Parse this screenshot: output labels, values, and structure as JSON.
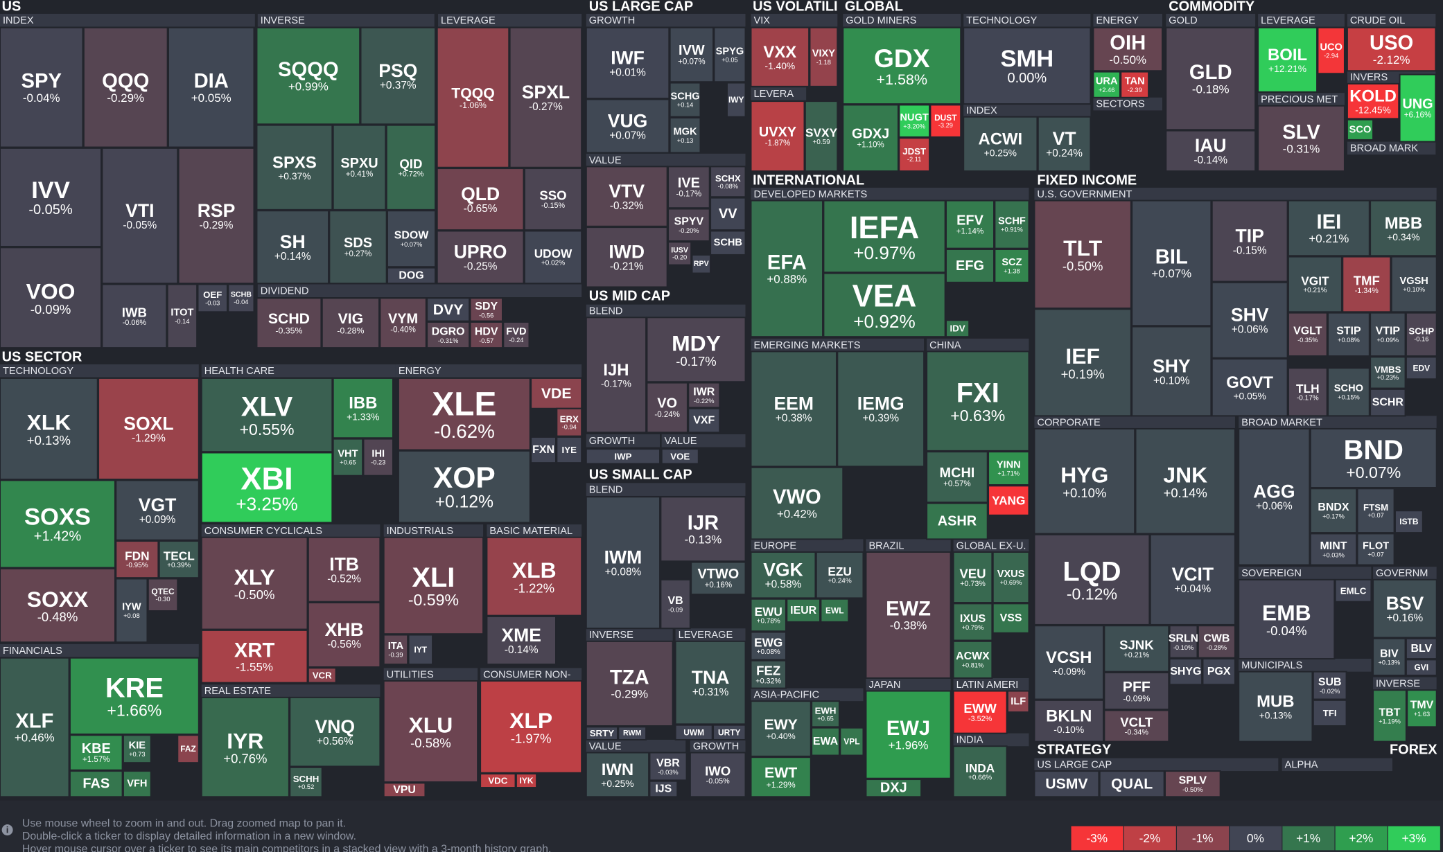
{
  "sections": [
    "US",
    "US LARGE CAP",
    "US VOLATILI",
    "GLOBAL",
    "COMMODITY",
    "US SECTOR",
    "INTERNATIONAL",
    "FIXED INCOME",
    "US MID CAP",
    "US SMALL CAP",
    "STRATEGY",
    "FOREX"
  ],
  "groups": [
    "INDEX",
    "INVERSE",
    "LEVERAGE",
    "DIVIDEND",
    "GROWTH",
    "VALUE",
    "VIX",
    "LEVERA",
    "GOLD MINERS",
    "TECHNOLOGY",
    "ENERGY",
    "INDEX",
    "SECTORS",
    "GOLD",
    "LEVERAGE",
    "CRUDE OIL",
    "PRECIOUS MET",
    "INVERS",
    "BROAD MARK",
    "TECHNOLOGY",
    "HEALTH CARE",
    "ENERGY",
    "CONSUMER CYCLICALS",
    "INDUSTRIALS",
    "BASIC MATERIAL",
    "FINANCIALS",
    "REAL ESTATE",
    "UTILITIES",
    "CONSUMER NON-",
    "BLEND",
    "GROWTH",
    "VALUE",
    "BLEND",
    "INVERSE",
    "LEVERAGE",
    "VALUE",
    "GROWTH",
    "DEVELOPED MARKETS",
    "EMERGING MARKETS",
    "CHINA",
    "EUROPE",
    "BRAZIL",
    "GLOBAL EX-U.",
    "ASIA-PACIFIC",
    "JAPAN",
    "LATIN AMERI",
    "INDIA",
    "U.S. GOVERNMENT",
    "CORPORATE",
    "BROAD MARKET",
    "SOVEREIGN",
    "GOVERNM",
    "MUNICIPALS",
    "INVERSE",
    "US LARGE CAP",
    "ALPHA"
  ],
  "tiles": [
    {
      "ticker": "SPY",
      "change": "-0.04%"
    },
    {
      "ticker": "QQQ",
      "change": "-0.29%"
    },
    {
      "ticker": "DIA",
      "change": "+0.05%"
    },
    {
      "ticker": "IVV",
      "change": "-0.05%"
    },
    {
      "ticker": "VTI",
      "change": "-0.05%"
    },
    {
      "ticker": "RSP",
      "change": "-0.29%"
    },
    {
      "ticker": "VOO",
      "change": "-0.09%"
    },
    {
      "ticker": "IWB",
      "change": "-0.06%"
    },
    {
      "ticker": "ITOT",
      "change": "-0.14"
    },
    {
      "ticker": "OEF",
      "change": "-0.03"
    },
    {
      "ticker": "SCHB",
      "change": "-0.04"
    },
    {
      "ticker": "SQQQ",
      "change": "+0.99%"
    },
    {
      "ticker": "PSQ",
      "change": "+0.37%"
    },
    {
      "ticker": "SPXS",
      "change": "+0.37%"
    },
    {
      "ticker": "SPXU",
      "change": "+0.41%"
    },
    {
      "ticker": "QID",
      "change": "+0.72%"
    },
    {
      "ticker": "SH",
      "change": "+0.14%"
    },
    {
      "ticker": "SDS",
      "change": "+0.27%"
    },
    {
      "ticker": "SDOW",
      "change": "+0.07%"
    },
    {
      "ticker": "DOG"
    },
    {
      "ticker": "TQQQ",
      "change": "-1.06%"
    },
    {
      "ticker": "SPXL",
      "change": "-0.27%"
    },
    {
      "ticker": "QLD",
      "change": "-0.65%"
    },
    {
      "ticker": "SSO",
      "change": "-0.15%"
    },
    {
      "ticker": "UPRO",
      "change": "-0.25%"
    },
    {
      "ticker": "UDOW",
      "change": "+0.02%"
    },
    {
      "ticker": "SCHD",
      "change": "-0.35%"
    },
    {
      "ticker": "VIG",
      "change": "-0.28%"
    },
    {
      "ticker": "VYM",
      "change": "-0.40%"
    },
    {
      "ticker": "DVY"
    },
    {
      "ticker": "SDY",
      "change": "-0.56"
    },
    {
      "ticker": "DGRO",
      "change": "-0.31%"
    },
    {
      "ticker": "HDV",
      "change": "-0.57"
    },
    {
      "ticker": "FVD",
      "change": "-0.24"
    },
    {
      "ticker": "XLK",
      "change": "+0.13%"
    },
    {
      "ticker": "SOXL",
      "change": "-1.29%"
    },
    {
      "ticker": "SOXS",
      "change": "+1.42%"
    },
    {
      "ticker": "VGT",
      "change": "+0.09%"
    },
    {
      "ticker": "FDN",
      "change": "-0.95%"
    },
    {
      "ticker": "TECL",
      "change": "+0.39%"
    },
    {
      "ticker": "SOXX",
      "change": "-0.48%"
    },
    {
      "ticker": "IYW",
      "change": "+0.08"
    },
    {
      "ticker": "QTEC",
      "change": "-0.30"
    },
    {
      "ticker": "XLF",
      "change": "+0.46%"
    },
    {
      "ticker": "KRE",
      "change": "+1.66%"
    },
    {
      "ticker": "KBE",
      "change": "+1.57%"
    },
    {
      "ticker": "KIE",
      "change": "+0.73"
    },
    {
      "ticker": "FAZ",
      "color": "#8b444e"
    },
    {
      "ticker": "FAS",
      "color": "#35764e"
    },
    {
      "ticker": "VFH",
      "color": "#35764e"
    },
    {
      "ticker": "XLV",
      "change": "+0.55%"
    },
    {
      "ticker": "IBB",
      "change": "+1.33%"
    },
    {
      "ticker": "XBI",
      "change": "+3.25%"
    },
    {
      "ticker": "VHT",
      "change": "+0.65"
    },
    {
      "ticker": "IHI",
      "change": "-0.23"
    },
    {
      "ticker": "XLE",
      "change": "-0.62%"
    },
    {
      "ticker": "VDE",
      "color": "#8b444e"
    },
    {
      "ticker": "ERX",
      "change": "-0.94"
    },
    {
      "ticker": "FXN"
    },
    {
      "ticker": "IYE"
    },
    {
      "ticker": "XOP",
      "change": "+0.12%"
    },
    {
      "ticker": "XLY",
      "change": "-0.50%"
    },
    {
      "ticker": "ITB",
      "change": "-0.52%"
    },
    {
      "ticker": "XRT",
      "change": "-1.55%"
    },
    {
      "ticker": "XHB",
      "change": "-0.56%"
    },
    {
      "ticker": "VCR",
      "color": "#8b444e"
    },
    {
      "ticker": "XLI",
      "change": "-0.59%"
    },
    {
      "ticker": "ITA",
      "change": "-0.39"
    },
    {
      "ticker": "IYT"
    },
    {
      "ticker": "XLB",
      "change": "-1.22%"
    },
    {
      "ticker": "XME",
      "change": "-0.14%"
    },
    {
      "ticker": "IYR",
      "change": "+0.76%"
    },
    {
      "ticker": "VNQ",
      "change": "+0.56%"
    },
    {
      "ticker": "SCHH",
      "change": "+0.52"
    },
    {
      "ticker": "XLU",
      "change": "-0.58%"
    },
    {
      "ticker": "VPU",
      "color": "#8b444e"
    },
    {
      "ticker": "XLP",
      "change": "-1.97%"
    },
    {
      "ticker": "VDC",
      "color": "#bf4045"
    },
    {
      "ticker": "IYK",
      "color": "#bf4045"
    },
    {
      "ticker": "IWF",
      "change": "+0.01%"
    },
    {
      "ticker": "IVW",
      "change": "+0.07%"
    },
    {
      "ticker": "SPYG",
      "change": "+0.05"
    },
    {
      "ticker": "VUG",
      "change": "+0.07%"
    },
    {
      "ticker": "SCHG",
      "change": "+0.14"
    },
    {
      "ticker": "IWY"
    },
    {
      "ticker": "MGK",
      "change": "+0.13"
    },
    {
      "ticker": "VTV",
      "change": "-0.32%"
    },
    {
      "ticker": "IVE",
      "change": "-0.17%"
    },
    {
      "ticker": "SCHX",
      "change": "-0.08%"
    },
    {
      "ticker": "VV"
    },
    {
      "ticker": "SPYV",
      "change": "-0.20%"
    },
    {
      "ticker": "SCHB"
    },
    {
      "ticker": "IWD",
      "change": "-0.21%"
    },
    {
      "ticker": "IUSV",
      "change": "-0.20"
    },
    {
      "ticker": "RPV"
    },
    {
      "ticker": "IJH",
      "change": "-0.17%"
    },
    {
      "ticker": "MDY",
      "change": "-0.17%"
    },
    {
      "ticker": "VO",
      "change": "-0.24%"
    },
    {
      "ticker": "IWR",
      "change": "-0.22%"
    },
    {
      "ticker": "VXF"
    },
    {
      "ticker": "IWP"
    },
    {
      "ticker": "VOE"
    },
    {
      "ticker": "IWM",
      "change": "+0.08%"
    },
    {
      "ticker": "IJR",
      "change": "-0.13%"
    },
    {
      "ticker": "VTWO",
      "change": "+0.16%"
    },
    {
      "ticker": "VB",
      "change": "-0.09"
    },
    {
      "ticker": "TZA",
      "change": "-0.29%"
    },
    {
      "ticker": "SRTY"
    },
    {
      "ticker": "RWM"
    },
    {
      "ticker": "TNA",
      "change": "+0.31%"
    },
    {
      "ticker": "UWM"
    },
    {
      "ticker": "URTY"
    },
    {
      "ticker": "IWN",
      "change": "+0.25%"
    },
    {
      "ticker": "VBR",
      "change": "-0.03%"
    },
    {
      "ticker": "IJS"
    },
    {
      "ticker": "IWO",
      "change": "-0.05%"
    },
    {
      "ticker": "VXX",
      "change": "-1.40%"
    },
    {
      "ticker": "VIXY",
      "change": "-1.18"
    },
    {
      "ticker": "UVXY",
      "change": "-1.87%"
    },
    {
      "ticker": "SVXY",
      "change": "+0.59"
    },
    {
      "ticker": "GDX",
      "change": "+1.58%"
    },
    {
      "ticker": "GDXJ",
      "change": "+1.10%"
    },
    {
      "ticker": "NUGT",
      "change": "+3.20%"
    },
    {
      "ticker": "DUST",
      "change": "-3.29"
    },
    {
      "ticker": "JDST",
      "change": "-2.11"
    },
    {
      "ticker": "SMH",
      "change": "0.00%"
    },
    {
      "ticker": "ACWI",
      "change": "+0.25%"
    },
    {
      "ticker": "VT",
      "change": "+0.24%"
    },
    {
      "ticker": "OIH",
      "change": "-0.50%"
    },
    {
      "ticker": "URA",
      "change": "+2.46"
    },
    {
      "ticker": "TAN",
      "change": "-2.39"
    },
    {
      "ticker": "GLD",
      "change": "-0.18%"
    },
    {
      "ticker": "IAU",
      "change": "-0.14%"
    },
    {
      "ticker": "BOIL",
      "change": "+12.21%"
    },
    {
      "ticker": "UCO",
      "change": "-2.94"
    },
    {
      "ticker": "USO",
      "change": "-2.12%"
    },
    {
      "ticker": "SLV",
      "change": "-0.31%"
    },
    {
      "ticker": "KOLD",
      "change": "-12.45%"
    },
    {
      "ticker": "UNG",
      "change": "+6.16%"
    },
    {
      "ticker": "SCO",
      "color": "#2f9e4f"
    },
    {
      "ticker": "EFA",
      "change": "+0.88%"
    },
    {
      "ticker": "IEFA",
      "change": "+0.97%"
    },
    {
      "ticker": "VEA",
      "change": "+0.92%"
    },
    {
      "ticker": "EFV",
      "change": "+1.14%"
    },
    {
      "ticker": "SCHF",
      "change": "+0.91%"
    },
    {
      "ticker": "EFG",
      "color": "#35764e"
    },
    {
      "ticker": "SCZ",
      "change": "+1.38"
    },
    {
      "ticker": "IDV",
      "color": "#35764e"
    },
    {
      "ticker": "EEM",
      "change": "+0.38%"
    },
    {
      "ticker": "IEMG",
      "change": "+0.39%"
    },
    {
      "ticker": "VWO",
      "change": "+0.42%"
    },
    {
      "ticker": "FXI",
      "change": "+0.63%"
    },
    {
      "ticker": "MCHI",
      "change": "+0.57%"
    },
    {
      "ticker": "YINN",
      "change": "+1.71%"
    },
    {
      "ticker": "YANG",
      "color": "#f63538"
    },
    {
      "ticker": "ASHR",
      "color": "#35764e"
    },
    {
      "ticker": "VGK",
      "change": "+0.58%"
    },
    {
      "ticker": "EZU",
      "change": "+0.24%"
    },
    {
      "ticker": "EWU",
      "change": "+0.78%"
    },
    {
      "ticker": "IEUR",
      "color": "#35764e"
    },
    {
      "ticker": "EWL",
      "color": "#35764e"
    },
    {
      "ticker": "EWG",
      "change": "+0.08%"
    },
    {
      "ticker": "FEZ",
      "change": "+0.32%"
    },
    {
      "ticker": "EWY",
      "change": "+0.40%"
    },
    {
      "ticker": "EWH",
      "change": "+0.65"
    },
    {
      "ticker": "EWA",
      "color": "#35764e"
    },
    {
      "ticker": "VPL",
      "color": "#35764e"
    },
    {
      "ticker": "EWT",
      "change": "+1.29%"
    },
    {
      "ticker": "EWZ",
      "change": "-0.38%"
    },
    {
      "ticker": "EWJ",
      "change": "+1.96%"
    },
    {
      "ticker": "DXJ",
      "color": "#35764e"
    },
    {
      "ticker": "VEU",
      "change": "+0.73%"
    },
    {
      "ticker": "VXUS",
      "change": "+0.69%"
    },
    {
      "ticker": "IXUS",
      "change": "+0.79%"
    },
    {
      "ticker": "VSS",
      "color": "#35764e"
    },
    {
      "ticker": "ACWX",
      "change": "+0.81%"
    },
    {
      "ticker": "EWW",
      "change": "-3.52%"
    },
    {
      "ticker": "ILF",
      "color": "#8b444e"
    },
    {
      "ticker": "INDA",
      "change": "+0.66%"
    },
    {
      "ticker": "TLT",
      "change": "-0.50%"
    },
    {
      "ticker": "BIL",
      "change": "+0.07%"
    },
    {
      "ticker": "TIP",
      "change": "-0.15%"
    },
    {
      "ticker": "IEI",
      "change": "+0.21%"
    },
    {
      "ticker": "MBB",
      "change": "+0.34%"
    },
    {
      "ticker": "VGIT",
      "change": "+0.21%"
    },
    {
      "ticker": "TMF",
      "change": "-1.34%"
    },
    {
      "ticker": "VGSH",
      "change": "+0.10%"
    },
    {
      "ticker": "SHV",
      "change": "+0.06%"
    },
    {
      "ticker": "IEF",
      "change": "+0.19%"
    },
    {
      "ticker": "SHY",
      "change": "+0.10%"
    },
    {
      "ticker": "GOVT",
      "change": "+0.05%"
    },
    {
      "ticker": "VGLT",
      "change": "-0.35%"
    },
    {
      "ticker": "STIP",
      "change": "+0.08%"
    },
    {
      "ticker": "VTIP",
      "change": "+0.09%"
    },
    {
      "ticker": "SCHP",
      "change": "-0.16"
    },
    {
      "ticker": "TLH",
      "change": "-0.17%"
    },
    {
      "ticker": "SCHO",
      "change": "+0.15%"
    },
    {
      "ticker": "VMBS",
      "change": "+0.23%"
    },
    {
      "ticker": "EDV"
    },
    {
      "ticker": "SCHR"
    },
    {
      "ticker": "HYG",
      "change": "+0.10%"
    },
    {
      "ticker": "JNK",
      "change": "+0.14%"
    },
    {
      "ticker": "LQD",
      "change": "-0.12%"
    },
    {
      "ticker": "VCIT",
      "change": "+0.04%"
    },
    {
      "ticker": "VCSH",
      "change": "+0.09%"
    },
    {
      "ticker": "SJNK",
      "change": "+0.21%"
    },
    {
      "ticker": "SRLN",
      "change": "-0.10%"
    },
    {
      "ticker": "CWB",
      "change": "-0.28%"
    },
    {
      "ticker": "PFF",
      "change": "-0.09%"
    },
    {
      "ticker": "SHYG"
    },
    {
      "ticker": "PGX"
    },
    {
      "ticker": "BKLN",
      "change": "-0.10%"
    },
    {
      "ticker": "VCLT",
      "change": "-0.34%"
    },
    {
      "ticker": "BND",
      "change": "+0.07%"
    },
    {
      "ticker": "AGG",
      "change": "+0.06%"
    },
    {
      "ticker": "BNDX",
      "change": "+0.17%"
    },
    {
      "ticker": "FTSM",
      "change": "+0.07"
    },
    {
      "ticker": "ISTB"
    },
    {
      "ticker": "MINT",
      "change": "+0.03%"
    },
    {
      "ticker": "FLOT",
      "change": "+0.07"
    },
    {
      "ticker": "EMB",
      "change": "-0.04%"
    },
    {
      "ticker": "EMLC"
    },
    {
      "ticker": "BSV",
      "change": "+0.16%"
    },
    {
      "ticker": "BIV",
      "change": "+0.13%"
    },
    {
      "ticker": "BLV"
    },
    {
      "ticker": "GVI"
    },
    {
      "ticker": "MUB",
      "change": "+0.13%"
    },
    {
      "ticker": "SUB",
      "change": "-0.02%"
    },
    {
      "ticker": "TFI"
    },
    {
      "ticker": "TBT",
      "change": "+1.19%"
    },
    {
      "ticker": "TMV",
      "change": "+1.63"
    },
    {
      "ticker": "USMV"
    },
    {
      "ticker": "QUAL"
    },
    {
      "ticker": "SPLV",
      "change": "-0.50%"
    }
  ],
  "help": [
    "Use mouse wheel to zoom in and out. Drag zoomed map to pan it.",
    "Double-click a ticker to display detailed information in a new window.",
    "Hover mouse cursor over a ticker to see its main competitors in a stacked view with a 3-month history graph."
  ],
  "legend": [
    "-3%",
    "-2%",
    "-1%",
    "0%",
    "+1%",
    "+2%",
    "+3%"
  ]
}
